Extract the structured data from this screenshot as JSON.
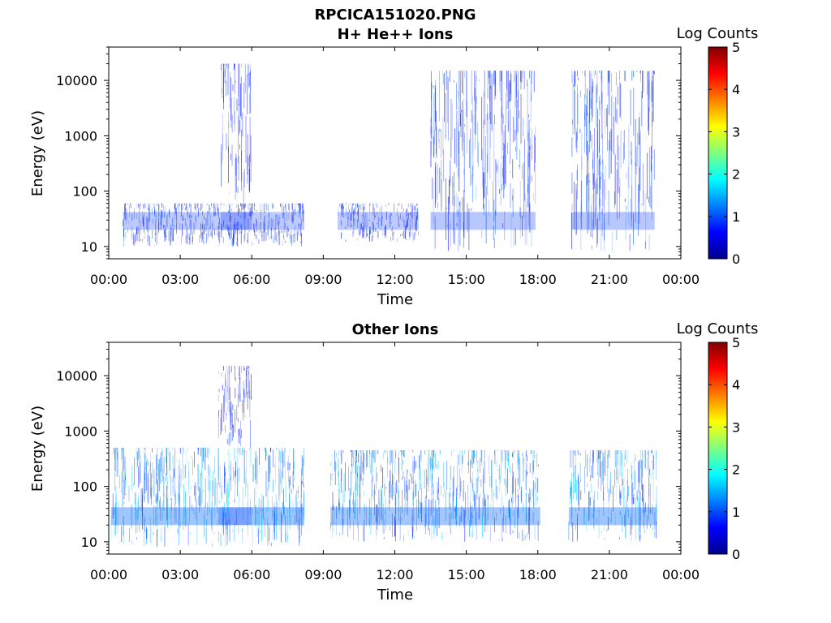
{
  "figure": {
    "filename": "RPCICA151020.PNG"
  },
  "chart_data": [
    {
      "type": "heatmap",
      "title": "H+ He++ Ions",
      "xlabel": "Time",
      "ylabel": "Energy (eV)",
      "x_ticks": [
        "00:00",
        "03:00",
        "06:00",
        "09:00",
        "12:00",
        "15:00",
        "18:00",
        "21:00",
        "00:00"
      ],
      "xlim_hours": [
        0,
        24
      ],
      "y_scale": "log",
      "y_ticks": [
        10,
        100,
        1000,
        10000
      ],
      "y_tick_labels": [
        "10",
        "100",
        "1000",
        "10000"
      ],
      "ylim": [
        6,
        40000
      ],
      "colorbar": {
        "label": "Log Counts",
        "range": [
          0,
          5
        ],
        "ticks": [
          "0",
          "1",
          "2",
          "3",
          "4",
          "5"
        ],
        "colormap": "jet"
      },
      "activity_intervals": [
        {
          "start_h": 0.6,
          "end_h": 8.2,
          "emin": 10,
          "emax": 60,
          "level": 0.45
        },
        {
          "start_h": 4.7,
          "end_h": 6.0,
          "emin": 60,
          "emax": 20000,
          "level": 0.35
        },
        {
          "start_h": 9.6,
          "end_h": 13.0,
          "emin": 12,
          "emax": 60,
          "level": 0.4
        },
        {
          "start_h": 13.5,
          "end_h": 17.9,
          "emin": 8,
          "emax": 15000,
          "level": 0.5
        },
        {
          "start_h": 19.4,
          "end_h": 22.9,
          "emin": 8,
          "emax": 15000,
          "level": 0.5
        }
      ],
      "grid": false
    },
    {
      "type": "heatmap",
      "title": "Other Ions",
      "xlabel": "Time",
      "ylabel": "Energy (eV)",
      "x_ticks": [
        "00:00",
        "03:00",
        "06:00",
        "09:00",
        "12:00",
        "15:00",
        "18:00",
        "21:00",
        "00:00"
      ],
      "xlim_hours": [
        0,
        24
      ],
      "y_scale": "log",
      "y_ticks": [
        10,
        100,
        1000,
        10000
      ],
      "y_tick_labels": [
        "10",
        "100",
        "1000",
        "10000"
      ],
      "ylim": [
        6,
        40000
      ],
      "colorbar": {
        "label": "Log Counts",
        "range": [
          0,
          5
        ],
        "ticks": [
          "0",
          "1",
          "2",
          "3",
          "4",
          "5"
        ],
        "colormap": "jet"
      },
      "activity_intervals": [
        {
          "start_h": 0.1,
          "end_h": 8.2,
          "emin": 8,
          "emax": 500,
          "level": 0.9
        },
        {
          "start_h": 4.6,
          "end_h": 6.0,
          "emin": 500,
          "emax": 15000,
          "level": 0.3
        },
        {
          "start_h": 9.3,
          "end_h": 18.1,
          "emin": 10,
          "emax": 450,
          "level": 0.85
        },
        {
          "start_h": 19.3,
          "end_h": 23.0,
          "emin": 10,
          "emax": 450,
          "level": 0.9
        }
      ],
      "grid": false
    }
  ]
}
